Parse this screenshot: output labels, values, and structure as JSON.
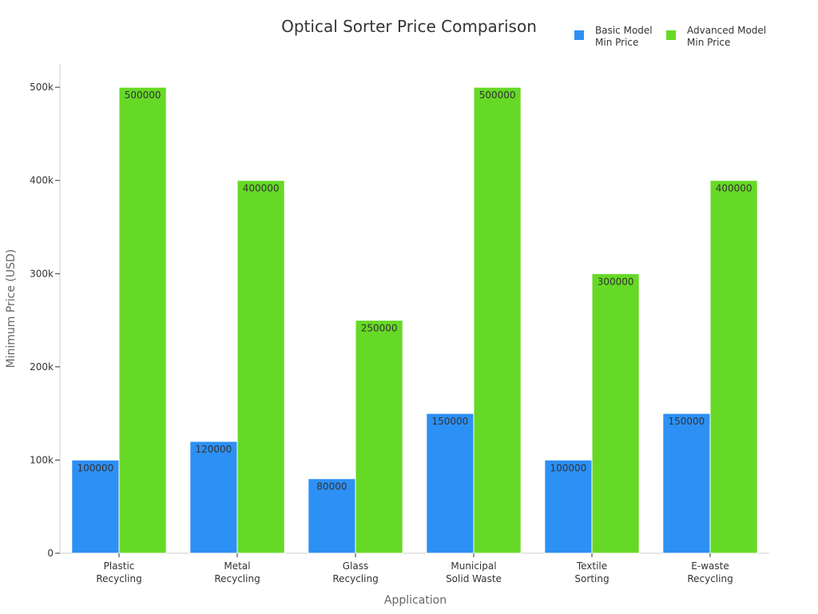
{
  "chart_data": {
    "type": "bar",
    "title": "Optical Sorter Price Comparison",
    "xlabel": "Application",
    "ylabel": "Minimum Price (USD)",
    "categories": [
      [
        "Plastic",
        "Recycling"
      ],
      [
        "Metal",
        "Recycling"
      ],
      [
        "Glass",
        "Recycling"
      ],
      [
        "Municipal",
        "Solid Waste"
      ],
      [
        "Textile",
        "Sorting"
      ],
      [
        "E-waste",
        "Recycling"
      ]
    ],
    "series": [
      {
        "name": [
          "Basic Model",
          "Min Price"
        ],
        "color": "#2d90f5",
        "values": [
          100000,
          120000,
          80000,
          150000,
          100000,
          150000
        ]
      },
      {
        "name": [
          "Advanced Model",
          "Min Price"
        ],
        "color": "#66d926",
        "values": [
          500000,
          400000,
          250000,
          500000,
          300000,
          400000
        ]
      }
    ],
    "ylim": [
      0,
      525000
    ],
    "yticks": [
      0,
      100000,
      200000,
      300000,
      400000,
      500000
    ],
    "ytick_labels": [
      "0",
      "100k",
      "200k",
      "300k",
      "400k",
      "500k"
    ],
    "legend_position": "top-right",
    "grid": false
  }
}
